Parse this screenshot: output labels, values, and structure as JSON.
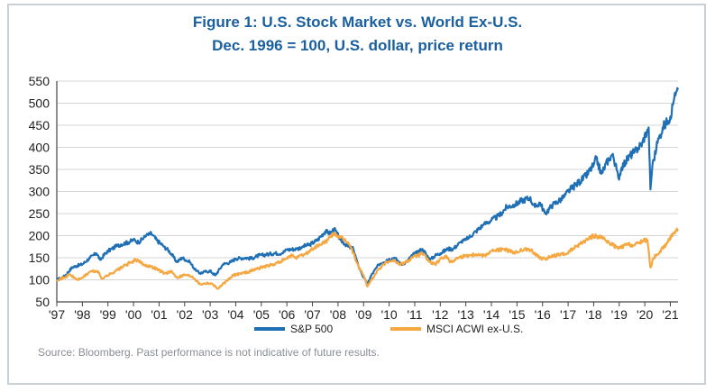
{
  "chart_data": {
    "type": "line",
    "title": "Figure 1:  U.S. Stock Market vs. World Ex-U.S.",
    "subtitle": "Dec. 1996 = 100, U.S. dollar, price return",
    "source": "Source: Bloomberg. Past performance is not indicative of future results.",
    "xlabel": "",
    "ylabel": "",
    "ylim": [
      50,
      550
    ],
    "xlim": [
      1997.0,
      2021.3
    ],
    "grid": true,
    "legend_position": "bottom-center",
    "y_ticks": [
      50,
      100,
      150,
      200,
      250,
      300,
      350,
      400,
      450,
      500,
      550
    ],
    "y_tick_labels": [
      "50",
      "100",
      "150",
      "200",
      "250",
      "300",
      "350",
      "400",
      "450",
      "500",
      "550"
    ],
    "x_ticks": [
      1997,
      1998,
      1999,
      2000,
      2001,
      2002,
      2003,
      2004,
      2005,
      2006,
      2007,
      2008,
      2009,
      2010,
      2011,
      2012,
      2013,
      2014,
      2015,
      2016,
      2017,
      2018,
      2019,
      2020,
      2021
    ],
    "x_tick_labels": [
      "'97",
      "'98",
      "'99",
      "'00",
      "'01",
      "'02",
      "'03",
      "'04",
      "'05",
      "'06",
      "'07",
      "'08",
      "'09",
      "'10",
      "'11",
      "'12",
      "'13",
      "'14",
      "'15",
      "'16",
      "'17",
      "'18",
      "'19",
      "'20",
      "'21"
    ],
    "series": [
      {
        "name": "S&P 500",
        "color": "#1f6fb5",
        "x": [
          1997.0,
          1997.3,
          1997.6,
          1997.8,
          1998.0,
          1998.3,
          1998.55,
          1998.7,
          1998.9,
          1999.0,
          1999.3,
          1999.5,
          1999.8,
          2000.0,
          2000.2,
          2000.5,
          2000.7,
          2000.9,
          2001.2,
          2001.4,
          2001.7,
          2001.9,
          2002.2,
          2002.45,
          2002.6,
          2002.8,
          2003.0,
          2003.2,
          2003.5,
          2003.8,
          2004.0,
          2004.4,
          2004.6,
          2004.9,
          2005.2,
          2005.5,
          2005.8,
          2006.0,
          2006.4,
          2006.6,
          2006.9,
          2007.2,
          2007.5,
          2007.7,
          2007.85,
          2008.1,
          2008.4,
          2008.6,
          2008.75,
          2008.85,
          2009.0,
          2009.15,
          2009.3,
          2009.6,
          2009.9,
          2010.2,
          2010.4,
          2010.6,
          2010.9,
          2011.3,
          2011.6,
          2011.8,
          2012.0,
          2012.3,
          2012.5,
          2012.8,
          2013.0,
          2013.4,
          2013.7,
          2014.0,
          2014.3,
          2014.6,
          2014.9,
          2015.2,
          2015.5,
          2015.7,
          2015.9,
          2016.1,
          2016.4,
          2016.8,
          2017.0,
          2017.4,
          2017.7,
          2018.0,
          2018.1,
          2018.3,
          2018.6,
          2018.75,
          2018.97,
          2019.1,
          2019.4,
          2019.6,
          2019.9,
          2020.1,
          2020.15,
          2020.22,
          2020.3,
          2020.5,
          2020.7,
          2020.9,
          2021.0,
          2021.15,
          2021.3
        ],
        "values": [
          100,
          108,
          128,
          132,
          135,
          150,
          160,
          145,
          160,
          165,
          175,
          180,
          185,
          190,
          185,
          200,
          205,
          190,
          175,
          165,
          140,
          150,
          140,
          120,
          115,
          118,
          120,
          110,
          135,
          140,
          148,
          150,
          148,
          155,
          157,
          160,
          160,
          168,
          170,
          175,
          180,
          190,
          210,
          205,
          215,
          190,
          175,
          170,
          140,
          125,
          105,
          90,
          110,
          135,
          145,
          150,
          140,
          135,
          155,
          170,
          145,
          155,
          160,
          170,
          170,
          185,
          190,
          210,
          225,
          235,
          245,
          265,
          270,
          280,
          285,
          265,
          275,
          250,
          270,
          285,
          300,
          320,
          335,
          360,
          375,
          340,
          375,
          385,
          330,
          355,
          380,
          390,
          410,
          440,
          445,
          305,
          360,
          410,
          445,
          460,
          470,
          510,
          530
        ]
      },
      {
        "name": "MSCI ACWI ex-U.S.",
        "color": "#f5a742",
        "x": [
          1997.0,
          1997.3,
          1997.5,
          1997.8,
          1998.0,
          1998.3,
          1998.6,
          1998.75,
          1999.0,
          1999.3,
          1999.6,
          1999.9,
          2000.1,
          2000.4,
          2000.7,
          2000.9,
          2001.2,
          2001.5,
          2001.7,
          2002.0,
          2002.3,
          2002.6,
          2002.9,
          2003.1,
          2003.3,
          2003.6,
          2003.9,
          2004.2,
          2004.5,
          2004.8,
          2005.1,
          2005.5,
          2005.9,
          2006.2,
          2006.4,
          2006.7,
          2007.0,
          2007.3,
          2007.6,
          2007.85,
          2008.1,
          2008.4,
          2008.6,
          2008.8,
          2009.0,
          2009.15,
          2009.3,
          2009.6,
          2009.9,
          2010.2,
          2010.4,
          2010.6,
          2010.9,
          2011.3,
          2011.6,
          2011.8,
          2012.2,
          2012.4,
          2012.7,
          2013.0,
          2013.4,
          2013.7,
          2014.0,
          2014.5,
          2014.9,
          2015.3,
          2015.6,
          2015.9,
          2016.1,
          2016.5,
          2016.9,
          2017.3,
          2017.7,
          2018.0,
          2018.3,
          2018.6,
          2018.97,
          2019.3,
          2019.6,
          2019.9,
          2020.1,
          2020.22,
          2020.35,
          2020.6,
          2020.9,
          2021.1,
          2021.3
        ],
        "values": [
          100,
          105,
          112,
          100,
          105,
          118,
          120,
          103,
          110,
          120,
          130,
          140,
          145,
          135,
          130,
          125,
          115,
          118,
          105,
          112,
          108,
          90,
          93,
          90,
          80,
          95,
          110,
          115,
          118,
          125,
          130,
          135,
          145,
          155,
          150,
          158,
          170,
          180,
          190,
          205,
          195,
          185,
          160,
          130,
          110,
          85,
          100,
          125,
          140,
          145,
          135,
          138,
          150,
          160,
          140,
          135,
          155,
          140,
          150,
          155,
          158,
          155,
          165,
          170,
          160,
          170,
          165,
          150,
          148,
          155,
          158,
          175,
          190,
          200,
          195,
          185,
          170,
          180,
          178,
          188,
          190,
          128,
          150,
          165,
          185,
          205,
          215
        ]
      }
    ]
  }
}
